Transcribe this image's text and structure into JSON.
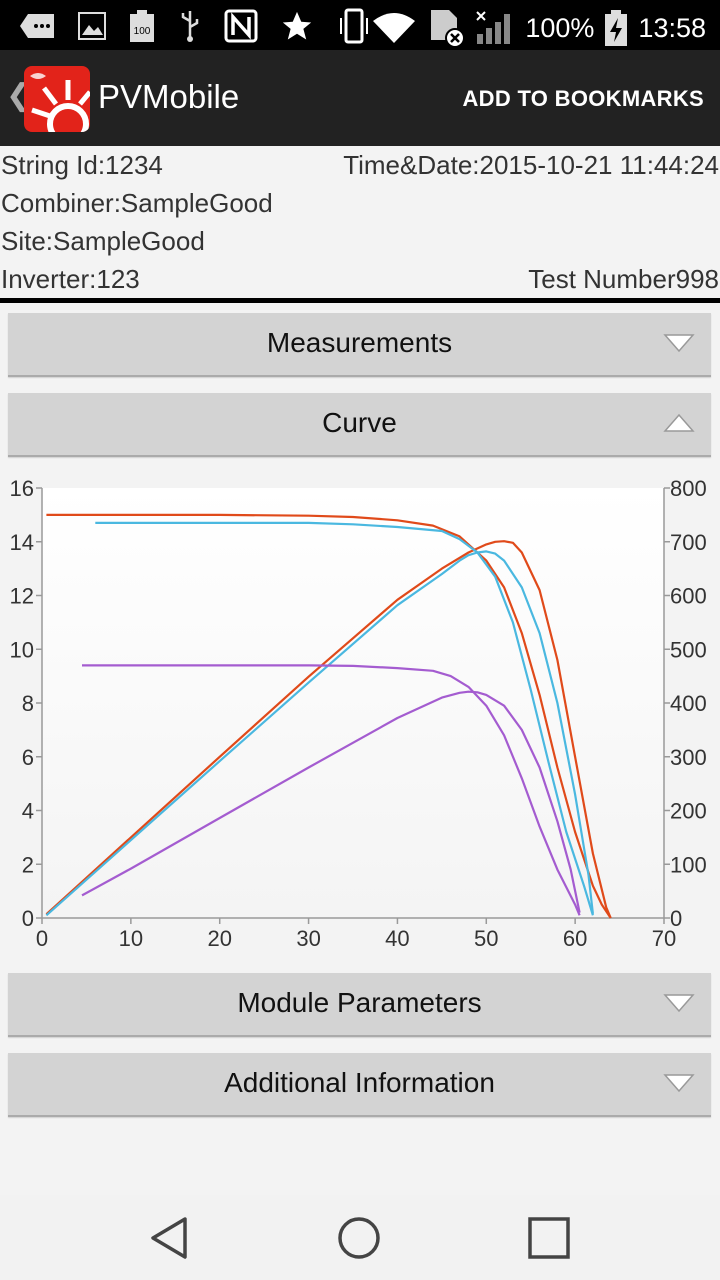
{
  "status_bar": {
    "battery_percent": "100%",
    "time": "13:58",
    "icons": [
      "message-icon",
      "image-icon",
      "battery-100-icon",
      "usb-icon",
      "nfc-icon",
      "star-icon",
      "vibrate-icon",
      "wifi-icon",
      "sim-blocked-icon",
      "signal-icon",
      "battery-charging-icon"
    ]
  },
  "action_bar": {
    "app_title": "PVMobile",
    "bookmark_label": "ADD TO BOOKMARKS"
  },
  "test_info": {
    "string_id": "String Id:1234",
    "time_date": "Time&Date:2015-10-21 11:44:24",
    "combiner": "Combiner:SampleGood",
    "site": "Site:SampleGood",
    "inverter": "Inverter:123",
    "test_number": "Test Number998"
  },
  "panels": {
    "measurements": "Measurements",
    "curve": "Curve",
    "module_parameters": "Module Parameters",
    "additional_information": "Additional Information"
  },
  "colors": {
    "orange": "#e04a1a",
    "blue": "#4ab8e0",
    "purple": "#a45cd0",
    "brand_red": "#e2231a"
  },
  "chart_data": {
    "type": "line",
    "x_ticks": [
      0,
      10,
      20,
      30,
      40,
      50,
      60,
      70
    ],
    "y_left_ticks": [
      0,
      2,
      4,
      6,
      8,
      10,
      12,
      14,
      16
    ],
    "y_right_ticks": [
      0,
      100,
      200,
      300,
      400,
      500,
      600,
      700,
      800
    ],
    "xlim": [
      0,
      70
    ],
    "ylim_left": [
      0,
      16
    ],
    "ylim_right": [
      0,
      800
    ],
    "series": [
      {
        "color": "#e04a1a",
        "axis": "left",
        "points": [
          [
            0.5,
            15
          ],
          [
            10,
            15
          ],
          [
            20,
            15
          ],
          [
            30,
            14.97
          ],
          [
            35,
            14.92
          ],
          [
            40,
            14.8
          ],
          [
            44,
            14.6
          ],
          [
            47,
            14.2
          ],
          [
            50,
            13.3
          ],
          [
            52,
            12.3
          ],
          [
            54,
            10.6
          ],
          [
            56,
            8.3
          ],
          [
            58,
            5.6
          ],
          [
            60,
            3.2
          ],
          [
            62,
            1.2
          ],
          [
            63,
            0.5
          ],
          [
            64,
            0
          ]
        ]
      },
      {
        "color": "#e04a1a",
        "axis": "right",
        "points": [
          [
            0.5,
            7
          ],
          [
            10,
            150
          ],
          [
            20,
            300
          ],
          [
            30,
            449
          ],
          [
            40,
            592
          ],
          [
            45,
            650
          ],
          [
            48,
            680
          ],
          [
            50,
            695
          ],
          [
            51,
            700
          ],
          [
            52,
            701
          ],
          [
            53,
            698
          ],
          [
            54,
            680
          ],
          [
            56,
            610
          ],
          [
            58,
            480
          ],
          [
            60,
            300
          ],
          [
            62,
            120
          ],
          [
            63.5,
            20
          ],
          [
            64,
            0
          ]
        ]
      },
      {
        "color": "#4ab8e0",
        "axis": "left",
        "points": [
          [
            6,
            14.7
          ],
          [
            15,
            14.7
          ],
          [
            25,
            14.7
          ],
          [
            30,
            14.7
          ],
          [
            35,
            14.65
          ],
          [
            40,
            14.55
          ],
          [
            45,
            14.4
          ],
          [
            47,
            14.1
          ],
          [
            49,
            13.6
          ],
          [
            51,
            12.7
          ],
          [
            53,
            11.0
          ],
          [
            55,
            8.5
          ],
          [
            57,
            5.8
          ],
          [
            59,
            3.2
          ],
          [
            61,
            1.2
          ],
          [
            62,
            0.1
          ]
        ]
      },
      {
        "color": "#4ab8e0",
        "axis": "right",
        "points": [
          [
            0.5,
            5
          ],
          [
            10,
            145
          ],
          [
            20,
            292
          ],
          [
            30,
            438
          ],
          [
            40,
            582
          ],
          [
            45,
            640
          ],
          [
            47,
            665
          ],
          [
            48,
            675
          ],
          [
            49,
            680
          ],
          [
            50,
            682
          ],
          [
            51,
            678
          ],
          [
            52,
            665
          ],
          [
            54,
            615
          ],
          [
            56,
            530
          ],
          [
            58,
            400
          ],
          [
            60,
            230
          ],
          [
            61.5,
            80
          ],
          [
            62,
            8
          ]
        ]
      },
      {
        "color": "#a45cd0",
        "axis": "left",
        "points": [
          [
            4.5,
            9.4
          ],
          [
            15,
            9.4
          ],
          [
            25,
            9.4
          ],
          [
            30,
            9.4
          ],
          [
            35,
            9.38
          ],
          [
            40,
            9.3
          ],
          [
            44,
            9.2
          ],
          [
            46,
            9.0
          ],
          [
            48,
            8.6
          ],
          [
            50,
            7.9
          ],
          [
            52,
            6.8
          ],
          [
            54,
            5.2
          ],
          [
            56,
            3.4
          ],
          [
            58,
            1.8
          ],
          [
            60,
            0.5
          ],
          [
            60.5,
            0.1
          ]
        ]
      },
      {
        "color": "#a45cd0",
        "axis": "right",
        "points": [
          [
            4.5,
            42
          ],
          [
            10,
            92
          ],
          [
            20,
            186
          ],
          [
            30,
            280
          ],
          [
            40,
            372
          ],
          [
            45,
            410
          ],
          [
            47,
            419
          ],
          [
            48,
            421
          ],
          [
            49,
            420
          ],
          [
            50,
            415
          ],
          [
            52,
            395
          ],
          [
            54,
            350
          ],
          [
            56,
            280
          ],
          [
            58,
            180
          ],
          [
            59.5,
            90
          ],
          [
            60.5,
            10
          ]
        ]
      }
    ]
  },
  "nav_bar": {
    "buttons": [
      "back",
      "home",
      "recents"
    ]
  }
}
